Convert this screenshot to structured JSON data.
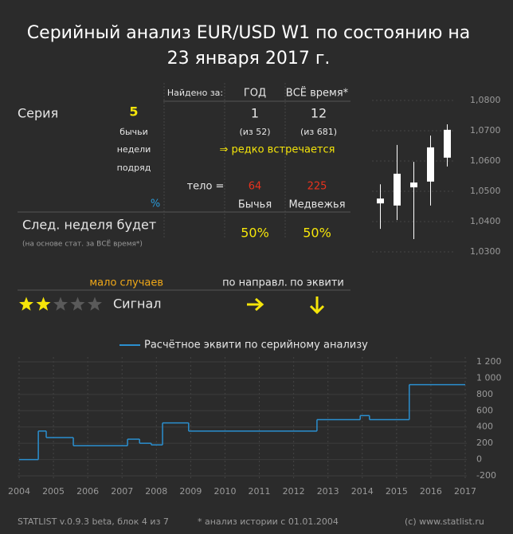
{
  "title_lines": [
    "Серийный анализ EUR/USD W1 по состоянию на",
    "23 января 2017 г."
  ],
  "table": {
    "found_label": "Найдено за:",
    "col_headers": [
      "ГОД",
      "ВСЁ время*"
    ],
    "series_label": "Серия",
    "series_length": "5",
    "series_desc": [
      "бычьи",
      "недели",
      "подряд"
    ],
    "counts": [
      "1",
      "12"
    ],
    "counts_of": [
      "(из 52)",
      "(из 681)"
    ],
    "rarity": "⇒ редко встречается",
    "body_label": "тело =",
    "body_values": [
      "64",
      "225"
    ],
    "percent_sign": "%",
    "outcome_headers": [
      "Бычья",
      "Медвежья"
    ],
    "next_week_label": "След. неделя будет",
    "next_week_note": "(на основе стат. за ВСЁ время*)",
    "probabilities": [
      "50%",
      "50%"
    ]
  },
  "signal": {
    "warning": "мало случаев",
    "col_headers": [
      "по направл.",
      "по эквити"
    ],
    "label": "Сигнал",
    "stars_filled": 2,
    "stars_total": 5
  },
  "chart_data": [
    {
      "type": "candlestick",
      "categories": [
        null,
        null,
        null,
        null,
        null
      ],
      "open": [
        1.046,
        1.0453,
        1.0513,
        1.0532,
        1.0611
      ],
      "high": [
        1.0523,
        1.0653,
        1.0597,
        1.0684,
        1.0721
      ],
      "low": [
        1.0376,
        1.0405,
        1.0342,
        1.0453,
        1.0582
      ],
      "close": [
        1.0476,
        1.0558,
        1.0529,
        1.0645,
        1.0703
      ],
      "color": "#ffffff",
      "ylim": [
        1.03,
        1.08
      ],
      "yticks": [
        {
          "value": 1.03,
          "label": "1,0300"
        },
        {
          "value": 1.04,
          "label": "1,0400"
        },
        {
          "value": 1.05,
          "label": "1,0500"
        },
        {
          "value": 1.06,
          "label": "1,0600"
        },
        {
          "value": 1.07,
          "label": "1,0700"
        },
        {
          "value": 1.08,
          "label": "1,0800"
        }
      ],
      "grid": true
    },
    {
      "type": "line",
      "step": true,
      "x": [
        2004.0,
        2004.56,
        2004.79,
        2005.58,
        2007.16,
        2007.51,
        2007.85,
        2008.18,
        2008.94,
        2012.68,
        2013.94,
        2014.21,
        2015.37
      ],
      "series": [
        {
          "name": "Расчётное эквити по серийному анализу",
          "color": "#2b8fcf",
          "values": [
            0,
            350,
            270,
            170,
            250,
            200,
            180,
            450,
            350,
            490,
            540,
            490,
            920
          ]
        }
      ],
      "xlim": [
        2004,
        2017
      ],
      "xticks": [
        2004,
        2005,
        2006,
        2007,
        2008,
        2009,
        2010,
        2011,
        2012,
        2013,
        2014,
        2015,
        2016,
        2017
      ],
      "ylim": [
        -200,
        1200
      ],
      "yticks": [
        -200,
        0,
        200,
        400,
        600,
        800,
        {
          "value": 1000,
          "label": "1 000"
        },
        {
          "value": 1200,
          "label": "1 200"
        }
      ],
      "grid": true
    }
  ],
  "footer": {
    "version": "STATLIST v.0.9.3 beta, блок 4 из 7",
    "history_note": "* анализ истории с  01.01.2004",
    "copyright": "(c)  www.statlist.ru"
  }
}
